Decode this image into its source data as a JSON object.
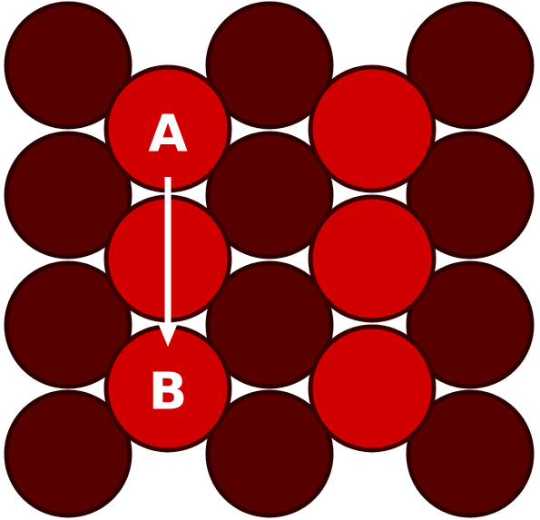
{
  "colors": {
    "dark_circle": "#570000",
    "bright_circle": "#d10000",
    "outline": "#2e0000",
    "arrow": "#ffffff",
    "label": "#ffffff",
    "background": "#ffffff"
  },
  "labels": {
    "start": "A",
    "end": "B"
  },
  "arrow": {
    "from": "A",
    "to": "B"
  }
}
